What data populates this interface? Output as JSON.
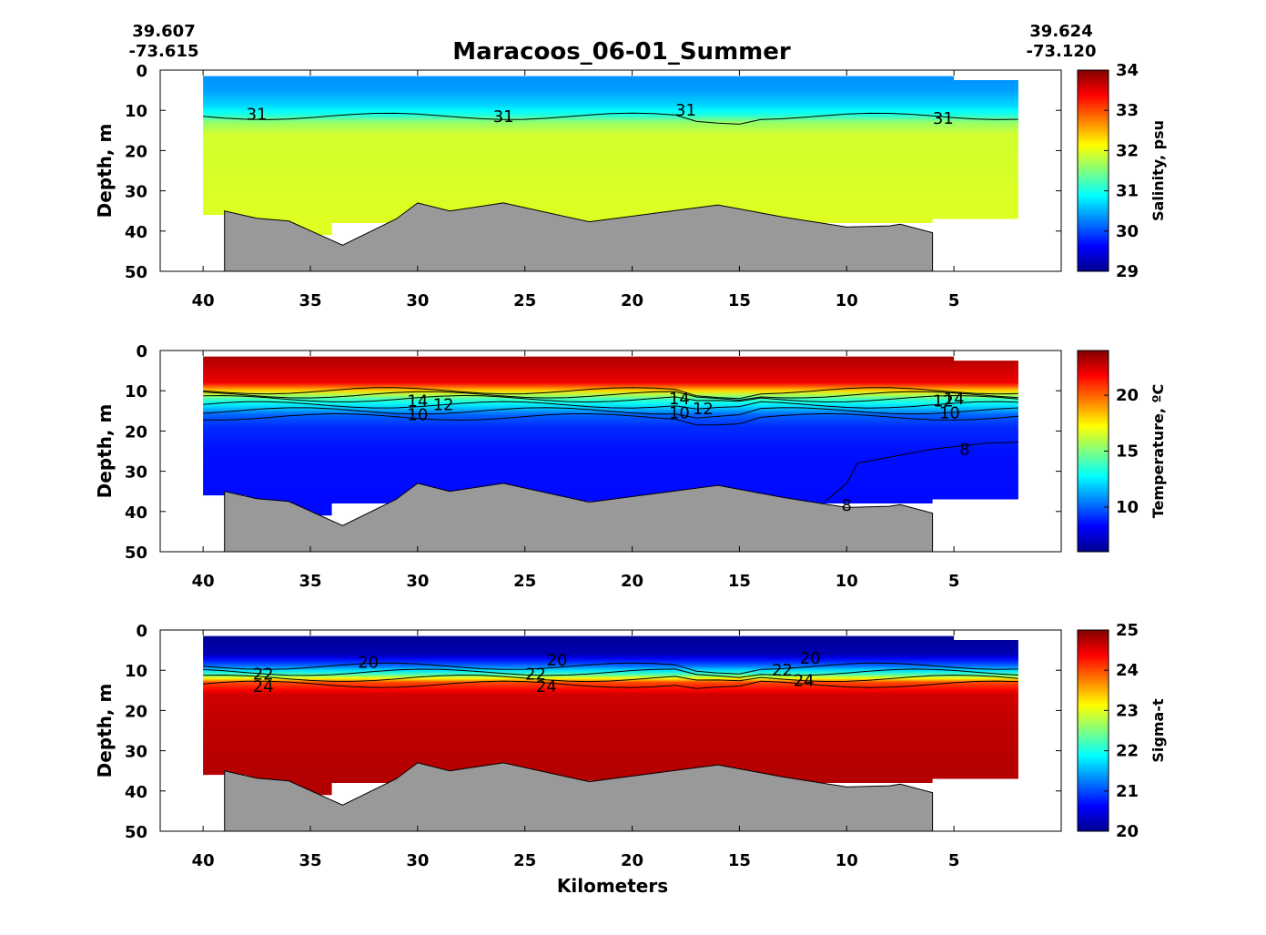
{
  "header": {
    "title": "Maracoos_06-01_Summer",
    "left_lat": "39.607",
    "left_lon": "-73.615",
    "right_lat": "39.624",
    "right_lon": "-73.120"
  },
  "chart_data": [
    {
      "type": "heatmap",
      "title": "Maracoos_06-01_Summer",
      "xlabel": "",
      "ylabel": "Depth, m",
      "colorbar_label": "Salinity, psu",
      "xlim": [
        42,
        0
      ],
      "ylim": [
        50,
        0
      ],
      "x_ticks": [
        40,
        35,
        30,
        25,
        20,
        15,
        10,
        5
      ],
      "y_ticks": [
        0,
        10,
        20,
        30,
        40,
        50
      ],
      "cbar_range": [
        29,
        34
      ],
      "cbar_ticks": [
        29,
        30,
        31,
        32,
        33,
        34
      ],
      "colormap": "jet",
      "contour_labels": [
        {
          "text": "31",
          "x": 37.5,
          "depth": 11
        },
        {
          "text": "31",
          "x": 26,
          "depth": 11.5
        },
        {
          "text": "31",
          "x": 17.5,
          "depth": 10
        },
        {
          "text": "31",
          "x": 5.5,
          "depth": 12
        }
      ],
      "bottom_color": "#999999"
    },
    {
      "type": "heatmap",
      "xlabel": "",
      "ylabel": "Depth, m",
      "colorbar_label": "Temperature, ºC",
      "xlim": [
        42,
        0
      ],
      "ylim": [
        50,
        0
      ],
      "x_ticks": [
        40,
        35,
        30,
        25,
        20,
        15,
        10,
        5
      ],
      "y_ticks": [
        0,
        10,
        20,
        30,
        40,
        50
      ],
      "cbar_range": [
        6,
        24
      ],
      "cbar_ticks": [
        10,
        15,
        20
      ],
      "colormap": "jet",
      "contour_labels": [
        {
          "text": "14",
          "x": 30,
          "depth": 12.5
        },
        {
          "text": "12",
          "x": 28.8,
          "depth": 13.5
        },
        {
          "text": "10",
          "x": 30,
          "depth": 16
        },
        {
          "text": "14",
          "x": 17.8,
          "depth": 12
        },
        {
          "text": "12",
          "x": 16.7,
          "depth": 14.5
        },
        {
          "text": "10",
          "x": 17.8,
          "depth": 15.5
        },
        {
          "text": "12",
          "x": 5.5,
          "depth": 12.5
        },
        {
          "text": "14",
          "x": 5,
          "depth": 12
        },
        {
          "text": "10",
          "x": 5.2,
          "depth": 15.5
        },
        {
          "text": "8",
          "x": 4.5,
          "depth": 24.5
        },
        {
          "text": "8",
          "x": 10,
          "depth": 38.5
        }
      ],
      "bottom_color": "#999999"
    },
    {
      "type": "heatmap",
      "xlabel": "Kilometers",
      "ylabel": "Depth, m",
      "colorbar_label": "Sigma-t",
      "xlim": [
        42,
        0
      ],
      "ylim": [
        50,
        0
      ],
      "x_ticks": [
        40,
        35,
        30,
        25,
        20,
        15,
        10,
        5
      ],
      "y_ticks": [
        0,
        10,
        20,
        30,
        40,
        50
      ],
      "cbar_range": [
        20,
        25
      ],
      "cbar_ticks": [
        20,
        21,
        22,
        23,
        24,
        25
      ],
      "colormap": "jet",
      "contour_labels": [
        {
          "text": "20",
          "x": 32.3,
          "depth": 8
        },
        {
          "text": "20",
          "x": 23.5,
          "depth": 7.5
        },
        {
          "text": "20",
          "x": 11.7,
          "depth": 7
        },
        {
          "text": "22",
          "x": 37.2,
          "depth": 11
        },
        {
          "text": "24",
          "x": 37.2,
          "depth": 14
        },
        {
          "text": "22",
          "x": 24.5,
          "depth": 11
        },
        {
          "text": "24",
          "x": 24,
          "depth": 14
        },
        {
          "text": "22",
          "x": 13,
          "depth": 10
        },
        {
          "text": "24",
          "x": 12,
          "depth": 12.5
        }
      ],
      "bottom_color": "#999999"
    }
  ]
}
